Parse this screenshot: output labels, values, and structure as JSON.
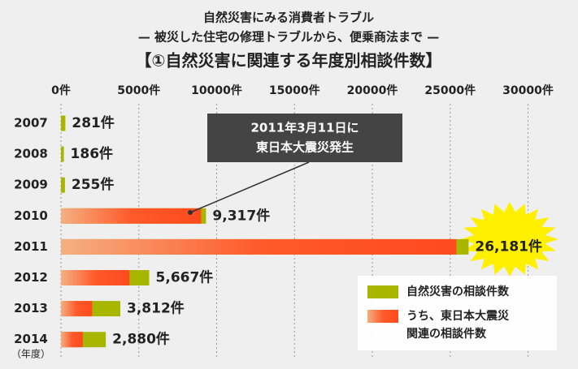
{
  "chart_data": {
    "type": "bar",
    "title": "自然災害にみる消費者トラブル",
    "subtitle": "— 被災した住宅の修理トラブルから、便乗商法まで —",
    "heading": "【①自然災害に関連する年度別相談件数】",
    "y_unit": "（年度）",
    "annotation": [
      "2011年3月11日に",
      "東日本大震災発生"
    ],
    "categories": [
      "2007",
      "2008",
      "2009",
      "2010",
      "2011",
      "2012",
      "2013",
      "2014"
    ],
    "series": [
      {
        "name": [
          "自然災害の相談件数"
        ],
        "color": "#a9b600",
        "values": [
          281,
          186,
          255,
          9317,
          26181,
          5667,
          3812,
          2880
        ],
        "value_labels": [
          "281件",
          "186件",
          "255件",
          "9,317件",
          "26,181件",
          "5,667件",
          "3,812件",
          "2,880件"
        ]
      },
      {
        "name": [
          "うち、東日本大震災",
          "関連の相談件数"
        ],
        "color": "#ff4a1e",
        "values": [
          0,
          0,
          0,
          9000,
          25400,
          4400,
          2000,
          1400
        ]
      }
    ],
    "xlim": [
      0,
      33000
    ],
    "xticks": [
      {
        "value": 0,
        "label": "0件"
      },
      {
        "value": 5000,
        "label": "5000件"
      },
      {
        "value": 10000,
        "label": "10000件"
      },
      {
        "value": 15000,
        "label": "15000件"
      },
      {
        "value": 20000,
        "label": "20000件"
      },
      {
        "value": 25000,
        "label": "25000件"
      },
      {
        "value": 30000,
        "label": "30000件"
      }
    ],
    "grid": true
  }
}
